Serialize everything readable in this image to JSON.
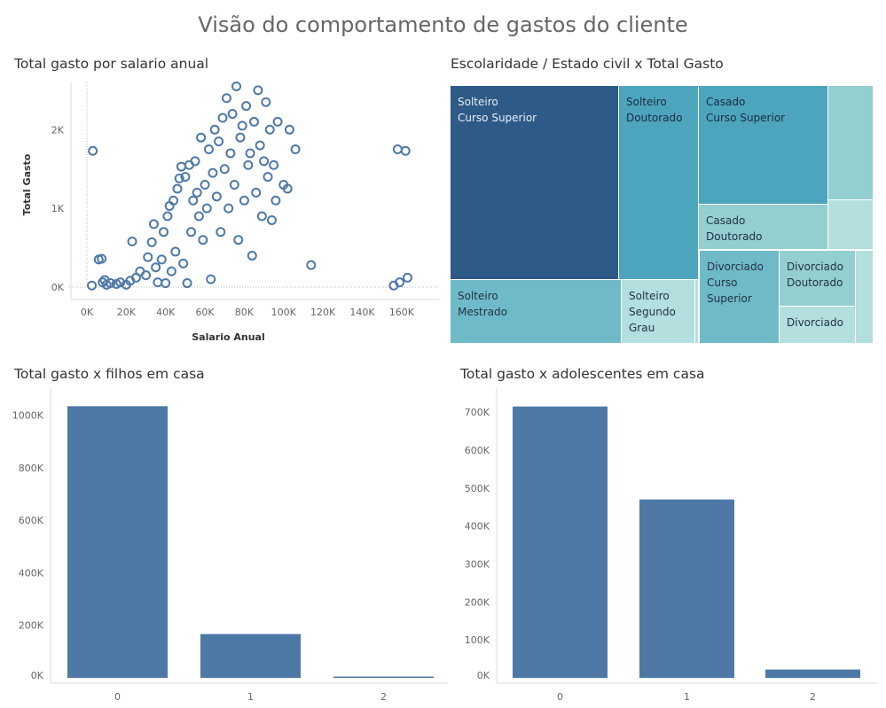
{
  "title": "Visão do comportamento de gastos do cliente",
  "colors": {
    "dark": "#2e5a87",
    "mid": "#4da4bd",
    "light": "#6fbac8",
    "lighter": "#93ced1",
    "lightest": "#b3dfde",
    "bar": "#4e79a7",
    "scatter": "#4e79a7"
  },
  "chart_data": [
    {
      "type": "scatter",
      "title": "Total gasto por salario anual",
      "xlabel": "Salario Anual",
      "ylabel": "Total Gasto",
      "xlim": [
        0,
        170000
      ],
      "ylim": [
        0,
        2600
      ],
      "xticks": [
        0,
        20000,
        40000,
        60000,
        80000,
        100000,
        120000,
        140000,
        160000
      ],
      "xtick_labels": [
        "0K",
        "20K",
        "40K",
        "60K",
        "80K",
        "100K",
        "120K",
        "140K",
        "160K"
      ],
      "yticks": [
        0,
        1000,
        2000
      ],
      "ytick_labels": [
        "0K",
        "1K",
        "2K"
      ],
      "points": [
        [
          2500,
          20
        ],
        [
          3000,
          1730
        ],
        [
          6000,
          350
        ],
        [
          7500,
          360
        ],
        [
          8000,
          60
        ],
        [
          9000,
          90
        ],
        [
          10000,
          30
        ],
        [
          12000,
          50
        ],
        [
          15000,
          40
        ],
        [
          17000,
          60
        ],
        [
          20000,
          30
        ],
        [
          22000,
          80
        ],
        [
          23000,
          580
        ],
        [
          25000,
          120
        ],
        [
          27000,
          200
        ],
        [
          30000,
          150
        ],
        [
          31000,
          380
        ],
        [
          33000,
          570
        ],
        [
          34000,
          800
        ],
        [
          35000,
          250
        ],
        [
          36000,
          60
        ],
        [
          38000,
          350
        ],
        [
          39000,
          700
        ],
        [
          40000,
          50
        ],
        [
          41000,
          900
        ],
        [
          42000,
          1030
        ],
        [
          43000,
          200
        ],
        [
          44000,
          1100
        ],
        [
          45000,
          450
        ],
        [
          46000,
          1250
        ],
        [
          47000,
          1380
        ],
        [
          48000,
          1530
        ],
        [
          49000,
          300
        ],
        [
          50000,
          1400
        ],
        [
          51000,
          50
        ],
        [
          52000,
          1550
        ],
        [
          53000,
          700
        ],
        [
          54000,
          1100
        ],
        [
          55000,
          1600
        ],
        [
          56000,
          1200
        ],
        [
          57000,
          900
        ],
        [
          58000,
          1900
        ],
        [
          59000,
          600
        ],
        [
          60000,
          1300
        ],
        [
          61000,
          1000
        ],
        [
          62000,
          1750
        ],
        [
          63000,
          100
        ],
        [
          64000,
          1450
        ],
        [
          65000,
          2000
        ],
        [
          66000,
          1150
        ],
        [
          67000,
          1850
        ],
        [
          68000,
          700
        ],
        [
          69000,
          2150
        ],
        [
          70000,
          1500
        ],
        [
          71000,
          2400
        ],
        [
          72000,
          1000
        ],
        [
          73000,
          1700
        ],
        [
          74000,
          2200
        ],
        [
          75000,
          1300
        ],
        [
          76000,
          2550
        ],
        [
          77000,
          600
        ],
        [
          78000,
          1900
        ],
        [
          79000,
          2050
        ],
        [
          80000,
          1100
        ],
        [
          81000,
          2300
        ],
        [
          82000,
          1550
        ],
        [
          83000,
          1700
        ],
        [
          84000,
          400
        ],
        [
          85000,
          2100
        ],
        [
          86000,
          1200
        ],
        [
          87000,
          2500
        ],
        [
          88000,
          1800
        ],
        [
          89000,
          900
        ],
        [
          90000,
          1600
        ],
        [
          91000,
          2350
        ],
        [
          92000,
          1400
        ],
        [
          93000,
          2000
        ],
        [
          94000,
          850
        ],
        [
          95000,
          1550
        ],
        [
          96000,
          1100
        ],
        [
          97000,
          2100
        ],
        [
          100000,
          1300
        ],
        [
          102000,
          1250
        ],
        [
          103000,
          2000
        ],
        [
          106000,
          1750
        ],
        [
          114000,
          280
        ],
        [
          156000,
          20
        ],
        [
          158000,
          1750
        ],
        [
          159000,
          60
        ],
        [
          162000,
          1730
        ],
        [
          163000,
          120
        ]
      ]
    },
    {
      "type": "treemap",
      "title": "Escolaridade / Estado civil x Total Gasto",
      "cells": [
        {
          "lines": [
            "Solteiro",
            "Curso Superior"
          ],
          "shade": "dark"
        },
        {
          "lines": [
            "Solteiro",
            "Doutorado"
          ],
          "shade": "mid"
        },
        {
          "lines": [
            "Casado",
            "Curso Superior"
          ],
          "shade": "mid"
        },
        {
          "lines": [],
          "shade": "lighter"
        },
        {
          "lines": [
            "Casado",
            "Doutorado"
          ],
          "shade": "lighter"
        },
        {
          "lines": [],
          "shade": "lightest"
        },
        {
          "lines": [
            "Solteiro",
            "Mestrado"
          ],
          "shade": "light"
        },
        {
          "lines": [
            "Solteiro",
            "Segundo",
            "Grau"
          ],
          "shade": "lightest"
        },
        {
          "lines": [],
          "shade": "lightest"
        },
        {
          "lines": [
            "Divorciado",
            "Curso",
            "Superior"
          ],
          "shade": "light"
        },
        {
          "lines": [
            "Divorciado",
            "Doutorado"
          ],
          "shade": "lighter"
        },
        {
          "lines": [
            "Divorciado"
          ],
          "shade": "lightest"
        },
        {
          "lines": [],
          "shade": "lightest"
        }
      ]
    },
    {
      "type": "bar",
      "title": "Total gasto x filhos em casa",
      "categories": [
        "0",
        "1",
        "2"
      ],
      "values": [
        1035000,
        167000,
        5000
      ],
      "ylim": [
        0,
        1070000
      ],
      "yticks": [
        0,
        200000,
        400000,
        600000,
        800000,
        1000000
      ],
      "ytick_labels": [
        "0K",
        "200K",
        "400K",
        "600K",
        "800K",
        "1000K"
      ]
    },
    {
      "type": "bar",
      "title": "Total gasto x adolescentes em casa",
      "categories": [
        "0",
        "1",
        "2"
      ],
      "values": [
        715000,
        470000,
        22000
      ],
      "ylim": [
        0,
        740000
      ],
      "yticks": [
        0,
        100000,
        200000,
        300000,
        400000,
        500000,
        600000,
        700000
      ],
      "ytick_labels": [
        "0K",
        "100K",
        "200K",
        "300K",
        "400K",
        "500K",
        "600K",
        "700K"
      ]
    }
  ]
}
